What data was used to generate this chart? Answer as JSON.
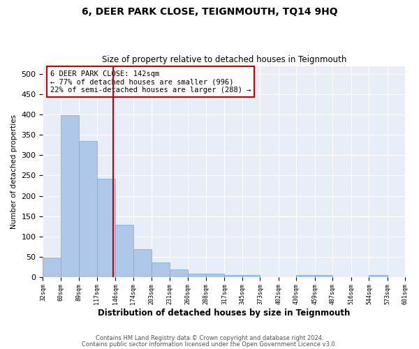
{
  "title": "6, DEER PARK CLOSE, TEIGNMOUTH, TQ14 9HQ",
  "subtitle": "Size of property relative to detached houses in Teignmouth",
  "xlabel": "Distribution of detached houses by size in Teignmouth",
  "ylabel": "Number of detached properties",
  "bar_color": "#aec6e8",
  "bar_edge_color": "#6aafd6",
  "background_color": "#e8eef7",
  "grid_color": "#ffffff",
  "annotation_line_color": "#cc0000",
  "annotation_text_line1": "6 DEER PARK CLOSE: 142sqm",
  "annotation_text_line2": "← 77% of detached houses are smaller (996)",
  "annotation_text_line3": "22% of semi-detached houses are larger (288) →",
  "footer1": "Contains HM Land Registry data © Crown copyright and database right 2024.",
  "footer2": "Contains public sector information licensed under the Open Government Licence v3.0.",
  "bins": [
    32,
    60,
    89,
    117,
    146,
    174,
    203,
    231,
    260,
    288,
    317,
    345,
    373,
    402,
    430,
    459,
    487,
    516,
    544,
    573,
    601
  ],
  "counts": [
    48,
    398,
    335,
    243,
    128,
    68,
    35,
    18,
    8,
    8,
    5,
    5,
    0,
    0,
    5,
    5,
    0,
    0,
    5,
    0
  ],
  "ylim": [
    0,
    520
  ],
  "yticks": [
    0,
    50,
    100,
    150,
    200,
    250,
    300,
    350,
    400,
    450,
    500
  ],
  "property_sqm": 142,
  "bin_min": 117,
  "bin_max": 146,
  "bin_index": 3
}
